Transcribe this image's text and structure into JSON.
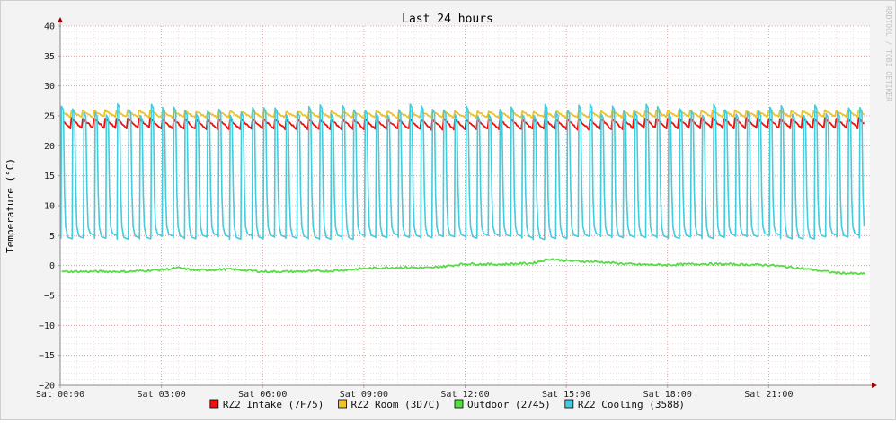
{
  "chart_data": {
    "type": "line",
    "title": "Last 24 hours",
    "ylabel": "Temperature (°C)",
    "watermark": "RRDTOOL / TOBI OETIKER",
    "ylim": [
      -20,
      40
    ],
    "yticks": [
      40,
      35,
      30,
      25,
      20,
      15,
      10,
      5,
      0,
      -5,
      -10,
      -15,
      -20
    ],
    "xlim": [
      0,
      24
    ],
    "xticks": [
      {
        "hour": 0,
        "label": "Sat 00:00"
      },
      {
        "hour": 3,
        "label": "Sat 03:00"
      },
      {
        "hour": 6,
        "label": "Sat 06:00"
      },
      {
        "hour": 9,
        "label": "Sat 09:00"
      },
      {
        "hour": 12,
        "label": "Sat 12:00"
      },
      {
        "hour": 15,
        "label": "Sat 15:00"
      },
      {
        "hour": 18,
        "label": "Sat 18:00"
      },
      {
        "hour": 21,
        "label": "Sat 21:00"
      }
    ],
    "grid": true,
    "legend_position": "bottom",
    "series": [
      {
        "name": "RZ2 Intake (7F75)",
        "color": "#ee1111",
        "pattern": "sawtooth",
        "min": 22.8,
        "max": 24.6,
        "cycles": 72
      },
      {
        "name": "RZ2 Room (3D7C)",
        "color": "#eec22a",
        "pattern": "sawtooth",
        "min": 24.7,
        "max": 25.9,
        "cycles": 72
      },
      {
        "name": "Outdoor (2745)",
        "color": "#55dd44",
        "pattern": "profile",
        "x": [
          0,
          1,
          2,
          3,
          3.5,
          4,
          5,
          6,
          7,
          8,
          9,
          10,
          11,
          12,
          13,
          14,
          14.5,
          15,
          16,
          17,
          18,
          19,
          20,
          21,
          22,
          23,
          23.8
        ],
        "y": [
          -1.0,
          -1.0,
          -1.0,
          -0.7,
          -0.4,
          -0.8,
          -0.6,
          -1.0,
          -1.0,
          -0.9,
          -0.5,
          -0.3,
          -0.4,
          0.3,
          0.2,
          0.4,
          1.1,
          0.8,
          0.6,
          0.2,
          0.1,
          0.3,
          0.2,
          0.1,
          -0.5,
          -1.2,
          -1.4
        ]
      },
      {
        "name": "RZ2 Cooling (3588)",
        "color": "#44ccdd",
        "pattern": "pulse",
        "min": 4.7,
        "max": 26.0,
        "cycles": 72
      }
    ]
  }
}
